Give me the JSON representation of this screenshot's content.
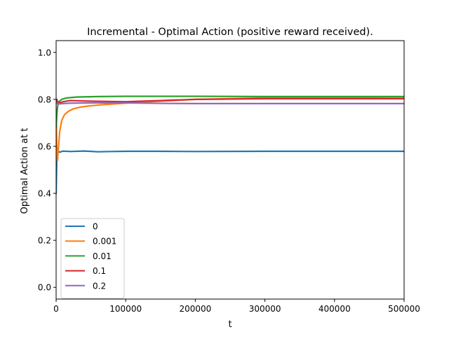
{
  "chart_data": {
    "type": "line",
    "title": "Incremental - Optimal Action (positive reward received).",
    "xlabel": "t",
    "ylabel": "Optimal Action at t",
    "xlim": [
      0,
      500000
    ],
    "ylim": [
      -0.05,
      1.05
    ],
    "xticks": [
      0,
      100000,
      200000,
      300000,
      400000,
      500000
    ],
    "xtick_labels": [
      "0",
      "100000",
      "200000",
      "300000",
      "400000",
      "500000"
    ],
    "yticks": [
      0.0,
      0.2,
      0.4,
      0.6,
      0.8,
      1.0
    ],
    "ytick_labels": [
      "0.0",
      "0.2",
      "0.4",
      "0.6",
      "0.8",
      "1.0"
    ],
    "grid": false,
    "legend_position": "lower-left",
    "series": [
      {
        "name": "0",
        "color": "#1f77b4",
        "x": [
          0,
          1000,
          3000,
          5000,
          10000,
          20000,
          40000,
          60000,
          80000,
          100000,
          150000,
          200000,
          300000,
          400000,
          500000
        ],
        "y": [
          0.4,
          0.56,
          0.58,
          0.575,
          0.58,
          0.578,
          0.58,
          0.577,
          0.578,
          0.579,
          0.579,
          0.578,
          0.579,
          0.579,
          0.579
        ]
      },
      {
        "name": "0.001",
        "color": "#ff7f0e",
        "x": [
          0,
          1000,
          2000,
          3000,
          5000,
          8000,
          12000,
          18000,
          25000,
          35000,
          50000,
          70000,
          100000,
          150000,
          200000,
          300000,
          400000,
          500000
        ],
        "y": [
          0.76,
          0.6,
          0.54,
          0.58,
          0.66,
          0.71,
          0.735,
          0.75,
          0.76,
          0.767,
          0.773,
          0.778,
          0.784,
          0.792,
          0.8,
          0.806,
          0.808,
          0.81
        ]
      },
      {
        "name": "0.01",
        "color": "#2ca02c",
        "x": [
          0,
          1000,
          2000,
          4000,
          8000,
          15000,
          30000,
          60000,
          100000,
          200000,
          300000,
          400000,
          500000
        ],
        "y": [
          0.68,
          0.73,
          0.77,
          0.79,
          0.8,
          0.806,
          0.81,
          0.812,
          0.813,
          0.813,
          0.812,
          0.812,
          0.812
        ]
      },
      {
        "name": "0.1",
        "color": "#d62728",
        "x": [
          0,
          1000,
          2000,
          5000,
          10000,
          20000,
          40000,
          60000,
          100000,
          150000,
          200000,
          300000,
          400000,
          500000
        ],
        "y": [
          0.79,
          0.8,
          0.79,
          0.785,
          0.79,
          0.795,
          0.793,
          0.792,
          0.79,
          0.795,
          0.8,
          0.803,
          0.803,
          0.803
        ]
      },
      {
        "name": "0.2",
        "color": "#9467bd",
        "x": [
          0,
          1000,
          3000,
          10000,
          20000,
          50000,
          100000,
          150000,
          200000,
          300000,
          400000,
          500000
        ],
        "y": [
          0.78,
          0.785,
          0.78,
          0.782,
          0.784,
          0.785,
          0.785,
          0.783,
          0.782,
          0.782,
          0.782,
          0.782
        ]
      }
    ]
  }
}
